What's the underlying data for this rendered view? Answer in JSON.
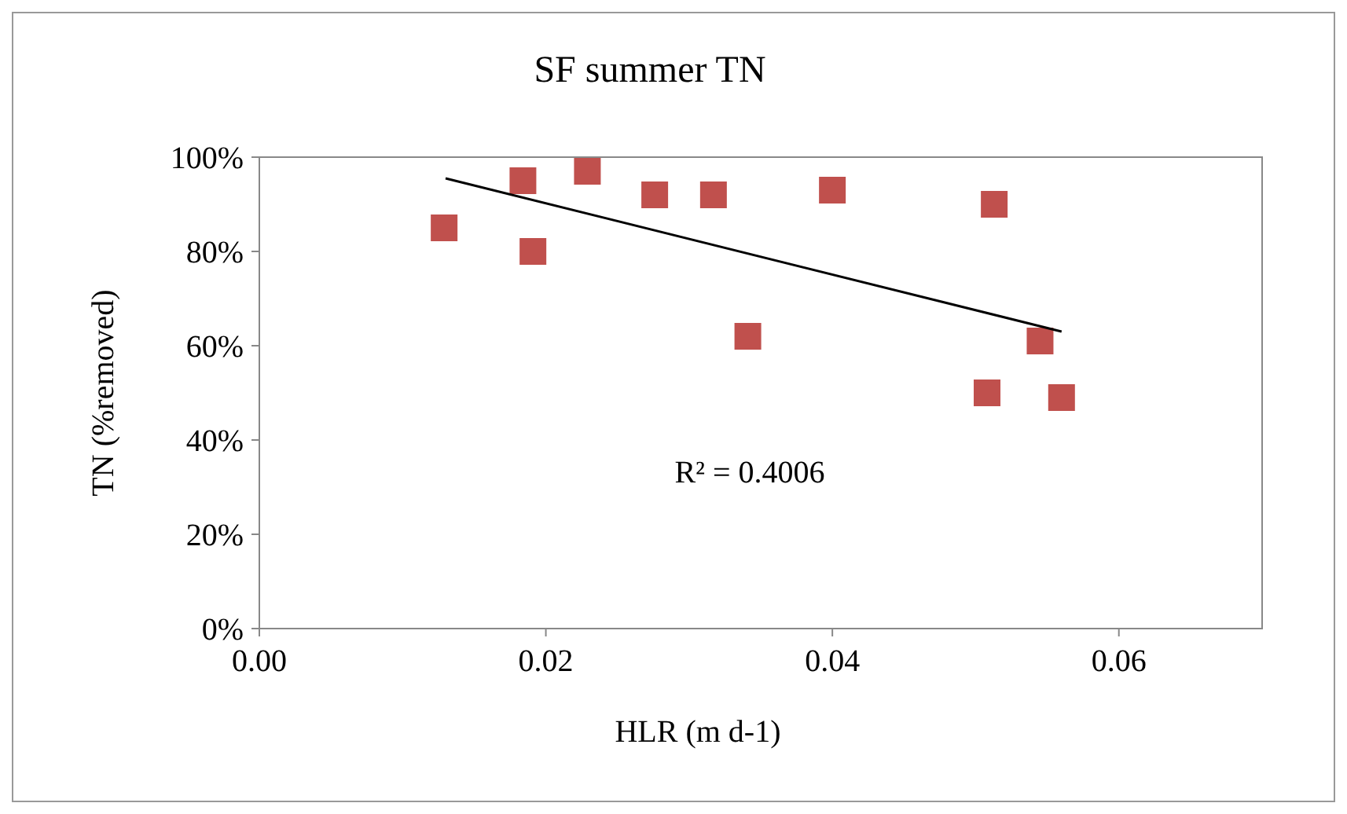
{
  "chart_data": {
    "type": "scatter",
    "title": "SF summer TN",
    "xlabel": "HLR (m d-1)",
    "ylabel": "TN (%removed)",
    "annotations": [
      "R² = 0.4006"
    ],
    "series": [
      {
        "color": "#c0504d",
        "marker": "square",
        "x": [
          0.0129,
          0.0184,
          0.0191,
          0.0229,
          0.0276,
          0.0317,
          0.0341,
          0.04,
          0.0513,
          0.0508,
          0.0545,
          0.056
        ],
        "values": [
          85,
          95,
          80,
          97,
          92,
          92,
          62,
          93,
          90,
          50,
          61,
          49
        ]
      },
      {
        "type": "line",
        "color": "#000000",
        "x": [
          0.013,
          0.056
        ],
        "values": [
          95.5,
          63
        ]
      }
    ],
    "xlim": [
      0,
      0.07
    ],
    "xticks": [
      {
        "value": 0,
        "label": "0.00"
      },
      {
        "value": 0.02,
        "label": "0.02"
      },
      {
        "value": 0.04,
        "label": "0.04"
      },
      {
        "value": 0.06,
        "label": "0.06"
      }
    ],
    "ylim": [
      0,
      100
    ],
    "yticks": [
      {
        "value": 0,
        "label": "0%"
      },
      {
        "value": 20,
        "label": "20%"
      },
      {
        "value": 40,
        "label": "40%"
      },
      {
        "value": 60,
        "label": "60%"
      },
      {
        "value": 80,
        "label": "80%"
      },
      {
        "value": 100,
        "label": "100%"
      }
    ],
    "grid": false
  }
}
